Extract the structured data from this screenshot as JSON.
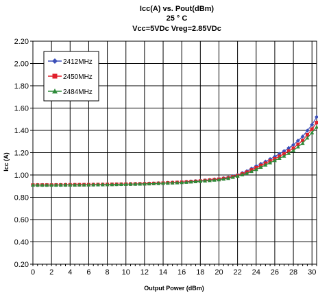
{
  "chart_data": {
    "type": "line",
    "title_lines": [
      "Icc(A) vs. Pout(dBm)",
      "25 ° C",
      "Vcc=5VDc Vreg=2.85VDc"
    ],
    "xlabel": "Output Power (dBm)",
    "ylabel": "Icc (A)",
    "xlim": [
      0,
      30.5
    ],
    "ylim": [
      0.2,
      2.2
    ],
    "x_ticks": [
      0,
      2,
      4,
      6,
      8,
      10,
      12,
      14,
      16,
      18,
      20,
      22,
      24,
      26,
      28,
      30
    ],
    "y_ticks": [
      "0.20",
      "0.40",
      "0.60",
      "0.80",
      "1.00",
      "1.20",
      "1.40",
      "1.60",
      "1.80",
      "2.00",
      "2.20"
    ],
    "grid": true,
    "legend_position": "top-left",
    "series": [
      {
        "name": "2412MHz",
        "color": "#3b4fb8",
        "marker": "diamond",
        "points": [
          [
            0,
            0.91
          ],
          [
            2,
            0.91
          ],
          [
            4,
            0.912
          ],
          [
            6,
            0.913
          ],
          [
            8,
            0.915
          ],
          [
            10,
            0.918
          ],
          [
            12,
            0.922
          ],
          [
            14,
            0.928
          ],
          [
            16,
            0.936
          ],
          [
            18,
            0.948
          ],
          [
            20,
            0.965
          ],
          [
            21,
            0.978
          ],
          [
            22,
            1.0
          ],
          [
            23,
            1.035
          ],
          [
            24,
            1.08
          ],
          [
            25,
            1.12
          ],
          [
            26,
            1.165
          ],
          [
            27,
            1.215
          ],
          [
            28,
            1.27
          ],
          [
            29,
            1.345
          ],
          [
            30,
            1.45
          ],
          [
            30.5,
            1.52
          ]
        ]
      },
      {
        "name": "2450MHz",
        "color": "#e0202c",
        "marker": "square",
        "points": [
          [
            0,
            0.91
          ],
          [
            2,
            0.91
          ],
          [
            4,
            0.912
          ],
          [
            6,
            0.913
          ],
          [
            8,
            0.915
          ],
          [
            10,
            0.918
          ],
          [
            12,
            0.921
          ],
          [
            14,
            0.927
          ],
          [
            16,
            0.935
          ],
          [
            18,
            0.946
          ],
          [
            20,
            0.962
          ],
          [
            21,
            0.974
          ],
          [
            22,
            0.995
          ],
          [
            23,
            1.025
          ],
          [
            24,
            1.065
          ],
          [
            25,
            1.105
          ],
          [
            26,
            1.145
          ],
          [
            27,
            1.19
          ],
          [
            28,
            1.24
          ],
          [
            29,
            1.31
          ],
          [
            30,
            1.41
          ],
          [
            30.5,
            1.47
          ]
        ]
      },
      {
        "name": "2484MHz",
        "color": "#2e8b3a",
        "marker": "triangle",
        "points": [
          [
            0,
            0.91
          ],
          [
            2,
            0.91
          ],
          [
            4,
            0.911
          ],
          [
            6,
            0.912
          ],
          [
            8,
            0.914
          ],
          [
            10,
            0.917
          ],
          [
            12,
            0.92
          ],
          [
            14,
            0.926
          ],
          [
            16,
            0.933
          ],
          [
            18,
            0.944
          ],
          [
            20,
            0.958
          ],
          [
            21,
            0.97
          ],
          [
            22,
            0.99
          ],
          [
            23,
            1.015
          ],
          [
            24,
            1.05
          ],
          [
            25,
            1.09
          ],
          [
            26,
            1.13
          ],
          [
            27,
            1.17
          ],
          [
            28,
            1.22
          ],
          [
            29,
            1.285
          ],
          [
            30,
            1.38
          ],
          [
            30.5,
            1.43
          ]
        ]
      }
    ]
  }
}
